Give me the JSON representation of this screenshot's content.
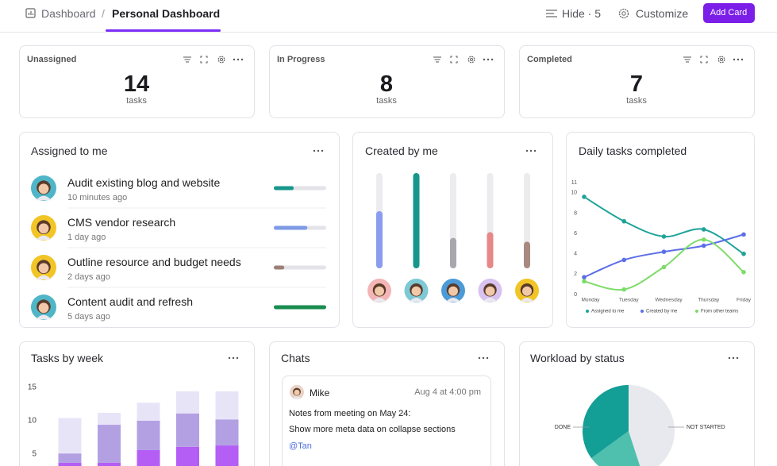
{
  "header": {
    "breadcrumb": [
      "Dashboard",
      "Personal Dashboard"
    ],
    "separator": "/",
    "hide": "Hide · 5",
    "customize": "Customize",
    "add_card": "Add Card"
  },
  "stats": [
    {
      "title": "Unassigned",
      "value": 14,
      "unit": "tasks"
    },
    {
      "title": "In Progress",
      "value": 8,
      "unit": "tasks"
    },
    {
      "title": "Completed",
      "value": 7,
      "unit": "tasks"
    }
  ],
  "assigned": {
    "title": "Assigned to me",
    "progress_range": [
      0,
      100
    ],
    "items": [
      {
        "name": "Audit existing blog and website",
        "time": "10 minutes ago",
        "progress": 38,
        "color": "#17978c"
      },
      {
        "name": "CMS vendor research",
        "time": "1 day ago",
        "progress": 64,
        "color": "#7f9be6"
      },
      {
        "name": "Outline resource and budget needs",
        "time": "2 days ago",
        "progress": 20,
        "color": "#9c7f76"
      },
      {
        "name": "Content audit and refresh",
        "time": "5 days ago",
        "progress": 100,
        "color": "#1a8c50"
      }
    ]
  },
  "chats": {
    "title": "Chats",
    "author": "Mike",
    "time": "Aug 4 at 4:00 pm",
    "lines": [
      "Notes from meeting on May 24:",
      "Show more meta data on collapse sections"
    ],
    "mention": "@Tan"
  },
  "chart_data": [
    {
      "type": "bar",
      "title": "Created by me",
      "categories": [
        null,
        null,
        null,
        null,
        null
      ],
      "values": [
        60,
        100,
        32,
        38,
        28
      ],
      "colors": [
        "#8b9cf0",
        "#17978c",
        "#a7a7ad",
        "#e78787",
        "#a88a80"
      ],
      "ylim": [
        0,
        100
      ]
    },
    {
      "type": "line",
      "title": "Daily tasks completed",
      "categories": [
        "Monday",
        "Tuesday",
        "Wednesday",
        "Thursday",
        "Friday"
      ],
      "series": [
        {
          "name": "Assigned to me",
          "color": "#1fa39a",
          "values": [
            9.6,
            7.2,
            5.7,
            6.4,
            4.0
          ]
        },
        {
          "name": "Created by me",
          "color": "#5b6ee8",
          "values": [
            1.7,
            3.4,
            4.2,
            4.8,
            5.9
          ]
        },
        {
          "name": "From other teams",
          "color": "#7edc6a",
          "values": [
            1.3,
            0.5,
            2.7,
            5.4,
            2.2
          ]
        }
      ],
      "ylim": [
        0,
        11
      ],
      "yticks": [
        0,
        2,
        4,
        6,
        8,
        10,
        11
      ],
      "grid": false,
      "legend": "bottom"
    },
    {
      "type": "stacked_bar",
      "title": "Tasks by week",
      "categories": [
        null,
        null,
        null,
        null,
        null
      ],
      "series": [
        {
          "color": "#b45ef5",
          "values": [
            3.7,
            3.7,
            5.6,
            6.1,
            6.3
          ]
        },
        {
          "color": "#b3a0e3",
          "values": [
            1.4,
            5.7,
            4.4,
            5.0,
            3.9
          ]
        },
        {
          "color": "#e8e4f8",
          "values": [
            5.3,
            1.8,
            2.7,
            3.3,
            4.2
          ]
        }
      ],
      "ylim": [
        0,
        15
      ],
      "yticks": [
        5,
        10,
        15
      ]
    },
    {
      "type": "pie",
      "title": "Workload by status",
      "categories": [
        "NOT STARTED",
        null,
        "DONE"
      ],
      "values": [
        45,
        20,
        35
      ],
      "colors": [
        "#e8e9ee",
        "#4fbfae",
        "#139e96"
      ]
    }
  ]
}
